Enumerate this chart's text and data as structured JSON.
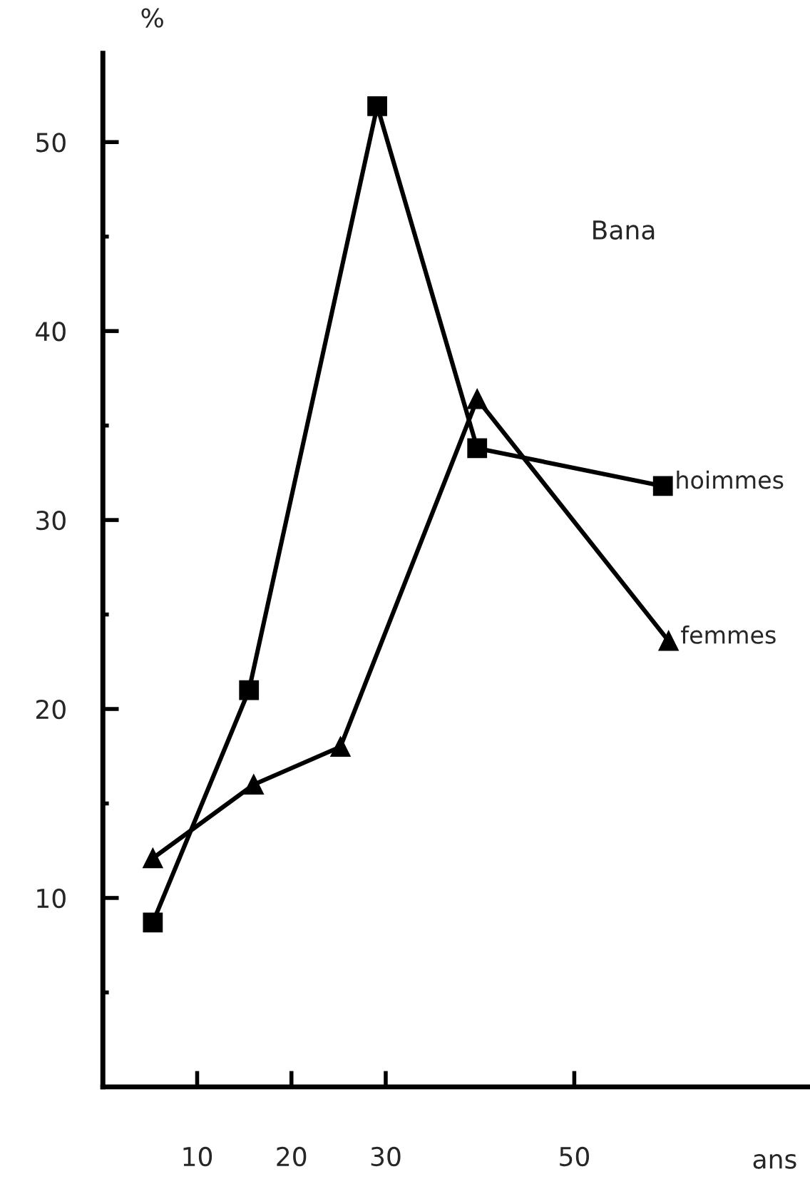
{
  "chart_data": {
    "type": "line",
    "ylabel": "%",
    "xlabel": "ans",
    "annotations": [
      "Bana"
    ],
    "series": [
      {
        "name": "hoimmes",
        "color": "#000000",
        "marker": "square",
        "x": [
          5.3,
          15.5,
          29.1,
          39.7,
          59.4
        ],
        "values": [
          8.7,
          21.0,
          51.9,
          33.8,
          31.8
        ]
      },
      {
        "name": "femmes",
        "color": "#000000",
        "marker": "triangle",
        "x": [
          5.3,
          16,
          25.2,
          39.7,
          60
        ],
        "values": [
          12.1,
          16.0,
          18.0,
          36.4,
          23.6
        ]
      }
    ],
    "xlim": [
      0,
      75
    ],
    "ylim": [
      0,
      54.7
    ],
    "xticks": [
      10,
      20,
      30,
      50
    ],
    "yticks": [
      {
        "value": 5,
        "label": null
      },
      10,
      {
        "value": 15,
        "label": null
      },
      20,
      {
        "value": 25,
        "label": null
      },
      30,
      {
        "value": 35,
        "label": null
      },
      40,
      {
        "value": 45,
        "label": null
      },
      50
    ],
    "grid": false,
    "legend": false,
    "line_style": "solid"
  }
}
